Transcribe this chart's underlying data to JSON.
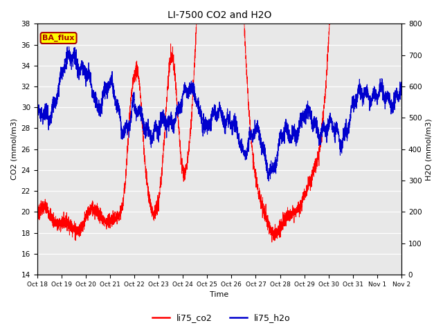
{
  "title": "LI-7500 CO2 and H2O",
  "xlabel": "Time",
  "ylabel_left": "CO2 (mmol/m3)",
  "ylabel_right": "H2O (mmol/m3)",
  "ylim_left": [
    14,
    38
  ],
  "ylim_right": [
    0,
    800
  ],
  "yticks_left": [
    14,
    16,
    18,
    20,
    22,
    24,
    26,
    28,
    30,
    32,
    34,
    36,
    38
  ],
  "yticks_right": [
    0,
    100,
    200,
    300,
    400,
    500,
    600,
    700,
    800
  ],
  "xtick_labels": [
    "Oct 18",
    "Oct 19",
    "Oct 20",
    "Oct 21",
    "Oct 22",
    "Oct 23",
    "Oct 24",
    "Oct 25",
    "Oct 26",
    "Oct 27",
    "Oct 28",
    "Oct 29",
    "Oct 30",
    "Oct 31",
    "Nov 1",
    "Nov 2"
  ],
  "color_co2": "#FF0000",
  "color_h2o": "#0000CD",
  "legend_label_co2": "li75_co2",
  "legend_label_h2o": "li75_h2o",
  "annotation_text": "BA_flux",
  "annotation_bg": "#FFFF00",
  "annotation_border": "#AA0000",
  "background_color": "#E8E8E8",
  "n_points": 4320,
  "random_seed": 7
}
